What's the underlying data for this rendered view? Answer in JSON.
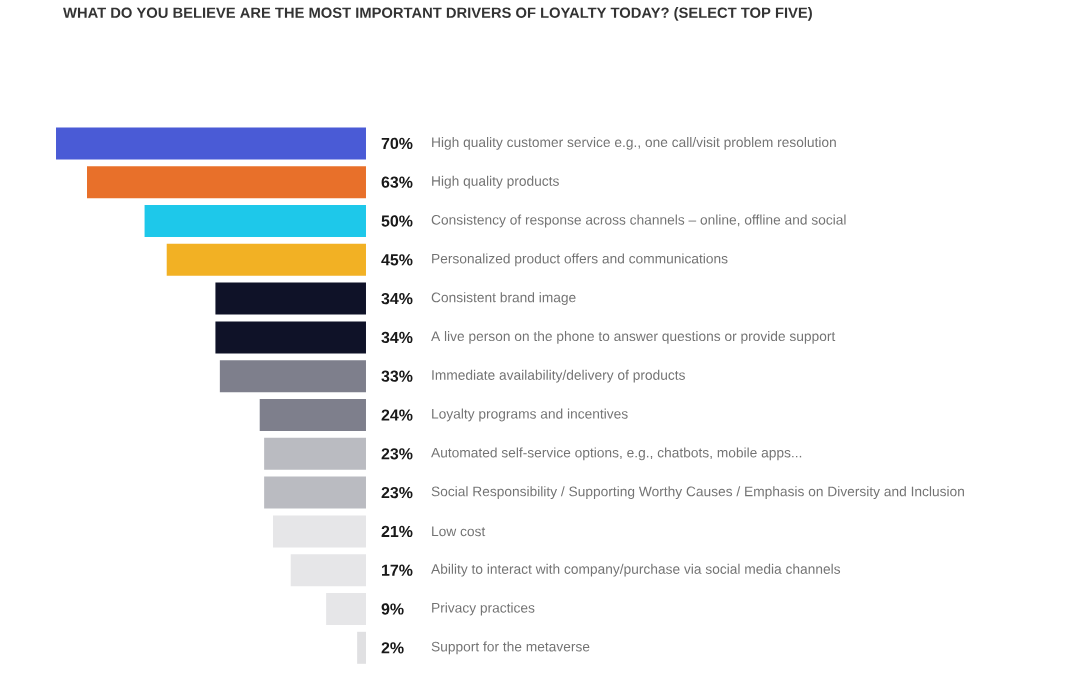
{
  "chart_data": {
    "type": "bar",
    "orientation": "horizontal",
    "title": "WHAT DO YOU BELIEVE ARE THE MOST IMPORTANT DRIVERS OF LOYALTY TODAY? (SELECT TOP FIVE)",
    "categories": [
      "High quality customer service e.g., one call/visit problem resolution",
      "High quality products",
      "Consistency of response across channels – online, offline and social",
      "Personalized product offers and communications",
      "Consistent brand image",
      "A live person on the phone to answer questions or provide support",
      "Immediate availability/delivery of products",
      "Loyalty programs and incentives",
      "Automated self-service options, e.g., chatbots, mobile apps...",
      "Social Responsibility / Supporting Worthy Causes / Emphasis on Diversity and Inclusion",
      "Low cost",
      "Ability to interact with company/purchase via social media channels",
      "Privacy practices",
      "Support for the metaverse"
    ],
    "values": [
      70,
      63,
      50,
      45,
      34,
      34,
      33,
      24,
      23,
      23,
      21,
      17,
      9,
      2
    ],
    "value_labels": [
      "70%",
      "63%",
      "50%",
      "45%",
      "34%",
      "34%",
      "33%",
      "24%",
      "23%",
      "23%",
      "21%",
      "17%",
      "9%",
      "2%"
    ],
    "colors": [
      "#4a5bd6",
      "#e8702a",
      "#1ec8ea",
      "#f2b124",
      "#0f1228",
      "#0f1228",
      "#7e7f8c",
      "#7e7f8c",
      "#babbc1",
      "#babbc1",
      "#e6e6e8",
      "#e6e6e8",
      "#e6e6e8",
      "#e0e0e2"
    ],
    "xlim": [
      70,
      0
    ]
  }
}
